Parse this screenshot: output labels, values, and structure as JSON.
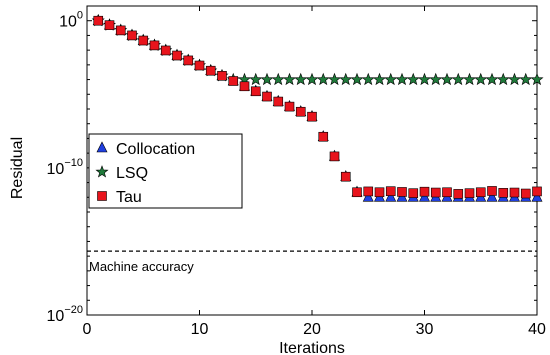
{
  "chart_data": {
    "type": "scatter",
    "xlabel": "Iterations",
    "ylabel": "Residual",
    "xlim": [
      0,
      40
    ],
    "ylim": [
      1e-20,
      10
    ],
    "yscale": "log",
    "grid": false,
    "legend": "left-middle",
    "x_ticks": [
      0,
      10,
      20,
      30,
      40
    ],
    "y_ticks": [
      {
        "value": 1e-20,
        "base": "10",
        "exp": "−20"
      },
      {
        "value": 1e-10,
        "base": "10",
        "exp": "−10"
      },
      {
        "value": 1,
        "base": "10",
        "exp": "0"
      }
    ],
    "reference_line": {
      "label": "Machine accuracy",
      "value": 2.2e-16
    },
    "series": [
      {
        "name": "Collocation",
        "marker": "triangle",
        "color": "#1f3fdf",
        "x": [
          1,
          2,
          3,
          4,
          5,
          6,
          7,
          8,
          9,
          10,
          11,
          12,
          13,
          14,
          15,
          16,
          17,
          18,
          19,
          20,
          21,
          22,
          23,
          24,
          25,
          26,
          27,
          28,
          29,
          30,
          31,
          32,
          33,
          34,
          35,
          36,
          37,
          38,
          39,
          40
        ],
        "y": [
          1,
          0.5,
          0.22,
          0.1,
          0.045,
          0.021,
          0.0095,
          0.0043,
          0.002,
          0.0009,
          0.0004,
          0.00018,
          8e-05,
          3.5e-05,
          1.6e-05,
          7e-06,
          3.2e-06,
          1.45e-06,
          6.5e-07,
          3e-07,
          1.3e-08,
          6e-10,
          2.5e-11,
          2.2e-12,
          1e-12,
          1e-12,
          1e-12,
          1e-12,
          1e-12,
          1e-12,
          1e-12,
          1e-12,
          1e-12,
          1e-12,
          1e-12,
          1e-12,
          1e-12,
          1e-12,
          1e-12,
          1e-12
        ]
      },
      {
        "name": "LSQ",
        "marker": "star",
        "color": "#1f7a3a",
        "x": [
          1,
          2,
          3,
          4,
          5,
          6,
          7,
          8,
          9,
          10,
          11,
          12,
          13,
          14,
          15,
          16,
          17,
          18,
          19,
          20,
          21,
          22,
          23,
          24,
          25,
          26,
          27,
          28,
          29,
          30,
          31,
          32,
          33,
          34,
          35,
          36,
          37,
          38,
          39,
          40
        ],
        "y": [
          1,
          0.5,
          0.22,
          0.1,
          0.045,
          0.021,
          0.0095,
          0.0043,
          0.002,
          0.0009,
          0.0004,
          0.00018,
          0.0001,
          0.0001,
          0.0001,
          0.0001,
          0.0001,
          0.0001,
          0.0001,
          0.0001,
          0.0001,
          0.0001,
          0.0001,
          0.0001,
          0.0001,
          0.0001,
          0.0001,
          0.0001,
          0.0001,
          0.0001,
          0.0001,
          0.0001,
          0.0001,
          0.0001,
          0.0001,
          0.0001,
          0.0001,
          0.0001,
          0.0001,
          0.0001
        ]
      },
      {
        "name": "Tau",
        "marker": "square",
        "color": "#e8141c",
        "x": [
          1,
          2,
          3,
          4,
          5,
          6,
          7,
          8,
          9,
          10,
          11,
          12,
          13,
          14,
          15,
          16,
          17,
          18,
          19,
          20,
          21,
          22,
          23,
          24,
          25,
          26,
          27,
          28,
          29,
          30,
          31,
          32,
          33,
          34,
          35,
          36,
          37,
          38,
          39,
          40
        ],
        "y": [
          1,
          0.5,
          0.22,
          0.1,
          0.045,
          0.021,
          0.0095,
          0.0043,
          0.002,
          0.0009,
          0.0004,
          0.00018,
          8e-05,
          3.5e-05,
          1.6e-05,
          7e-06,
          3.2e-06,
          1.45e-06,
          6.5e-07,
          3e-07,
          1.3e-08,
          6e-10,
          2.5e-11,
          2.2e-12,
          2.5e-12,
          2.2e-12,
          2.6e-12,
          2.3e-12,
          1.9e-12,
          2.4e-12,
          2.1e-12,
          2.2e-12,
          1.7e-12,
          1.9e-12,
          2.2e-12,
          2.7e-12,
          2e-12,
          2.1e-12,
          1.8e-12,
          2.5e-12
        ]
      }
    ]
  }
}
